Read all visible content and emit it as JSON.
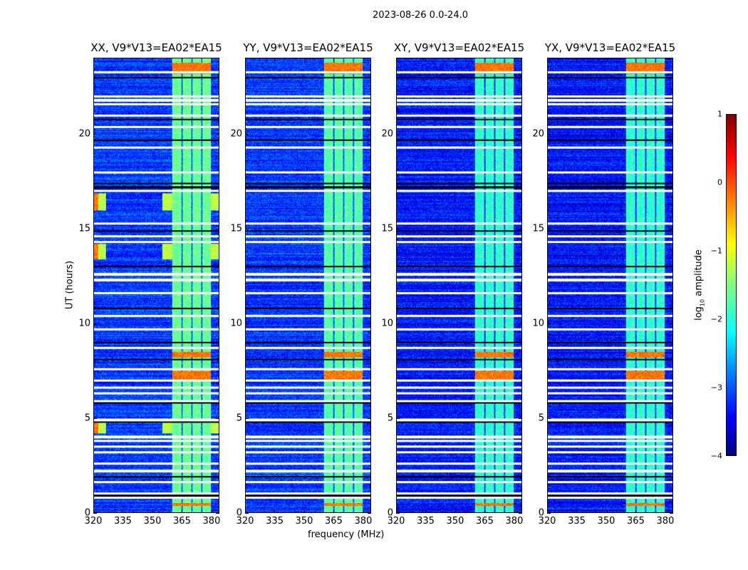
{
  "chart_data": {
    "type": "heatmap",
    "title": "2023-08-26 0.0-24.0",
    "xlabel": "frequency (MHz)",
    "ylabel": "UT (hours)",
    "xlim": [
      320,
      384
    ],
    "ylim": [
      0,
      24
    ],
    "xticks": [
      "320",
      "335",
      "350",
      "365",
      "380"
    ],
    "yticks": [
      "0",
      "5",
      "10",
      "15",
      "20"
    ],
    "colorbar": {
      "label": "log",
      "label_sub": "10",
      "label_tail": " amplitude",
      "range": [
        -4,
        1
      ],
      "ticks": [
        "1",
        "0",
        "−1",
        "−2",
        "−3",
        "−4"
      ],
      "colormap": "jet"
    },
    "panels": [
      {
        "title": "XX, V9*V13=EA02*EA15",
        "base_log_amp": -3.1,
        "rfi_band_mhz": [
          360,
          380
        ],
        "band_log_amp": -1.6,
        "strong_rfi_hours": [
          [
            16.0,
            16.9
          ],
          [
            4.2,
            4.8
          ],
          [
            13.4,
            14.2
          ]
        ]
      },
      {
        "title": "YY, V9*V13=EA02*EA15",
        "base_log_amp": -3.1,
        "rfi_band_mhz": [
          360,
          380
        ],
        "band_log_amp": -1.7,
        "strong_rfi_hours": []
      },
      {
        "title": "XY, V9*V13=EA02*EA15",
        "base_log_amp": -3.3,
        "rfi_band_mhz": [
          360,
          380
        ],
        "band_log_amp": -1.9,
        "strong_rfi_hours": []
      },
      {
        "title": "YX, V9*V13=EA02*EA15",
        "base_log_amp": -3.3,
        "rfi_band_mhz": [
          360,
          380
        ],
        "band_log_amp": -1.9,
        "strong_rfi_hours": []
      }
    ],
    "band_burst_hours": [
      [
        8.2,
        8.5
      ],
      [
        7.0,
        7.5
      ],
      [
        0.35,
        0.5
      ],
      [
        23.2,
        23.8
      ]
    ],
    "flagged_white_hours": [
      23.3,
      22.0,
      21.8,
      21.6,
      21.0,
      20.4,
      19.3,
      18.0,
      17.0,
      15.3,
      14.6,
      14.3,
      12.6,
      12.3,
      11.6,
      10.4,
      9.7,
      8.7,
      7.6,
      7.0,
      6.6,
      6.3,
      5.9,
      4.9,
      4.0,
      3.8,
      3.5,
      3.2,
      2.6,
      2.2,
      1.6,
      1.0,
      0.8
    ],
    "flagged_black_hours": [
      23.0,
      20.8,
      19.7,
      17.4,
      17.2,
      14.9,
      13.0,
      10.8,
      9.0,
      8.1,
      5.8,
      4.8,
      1.9,
      0.9
    ]
  }
}
